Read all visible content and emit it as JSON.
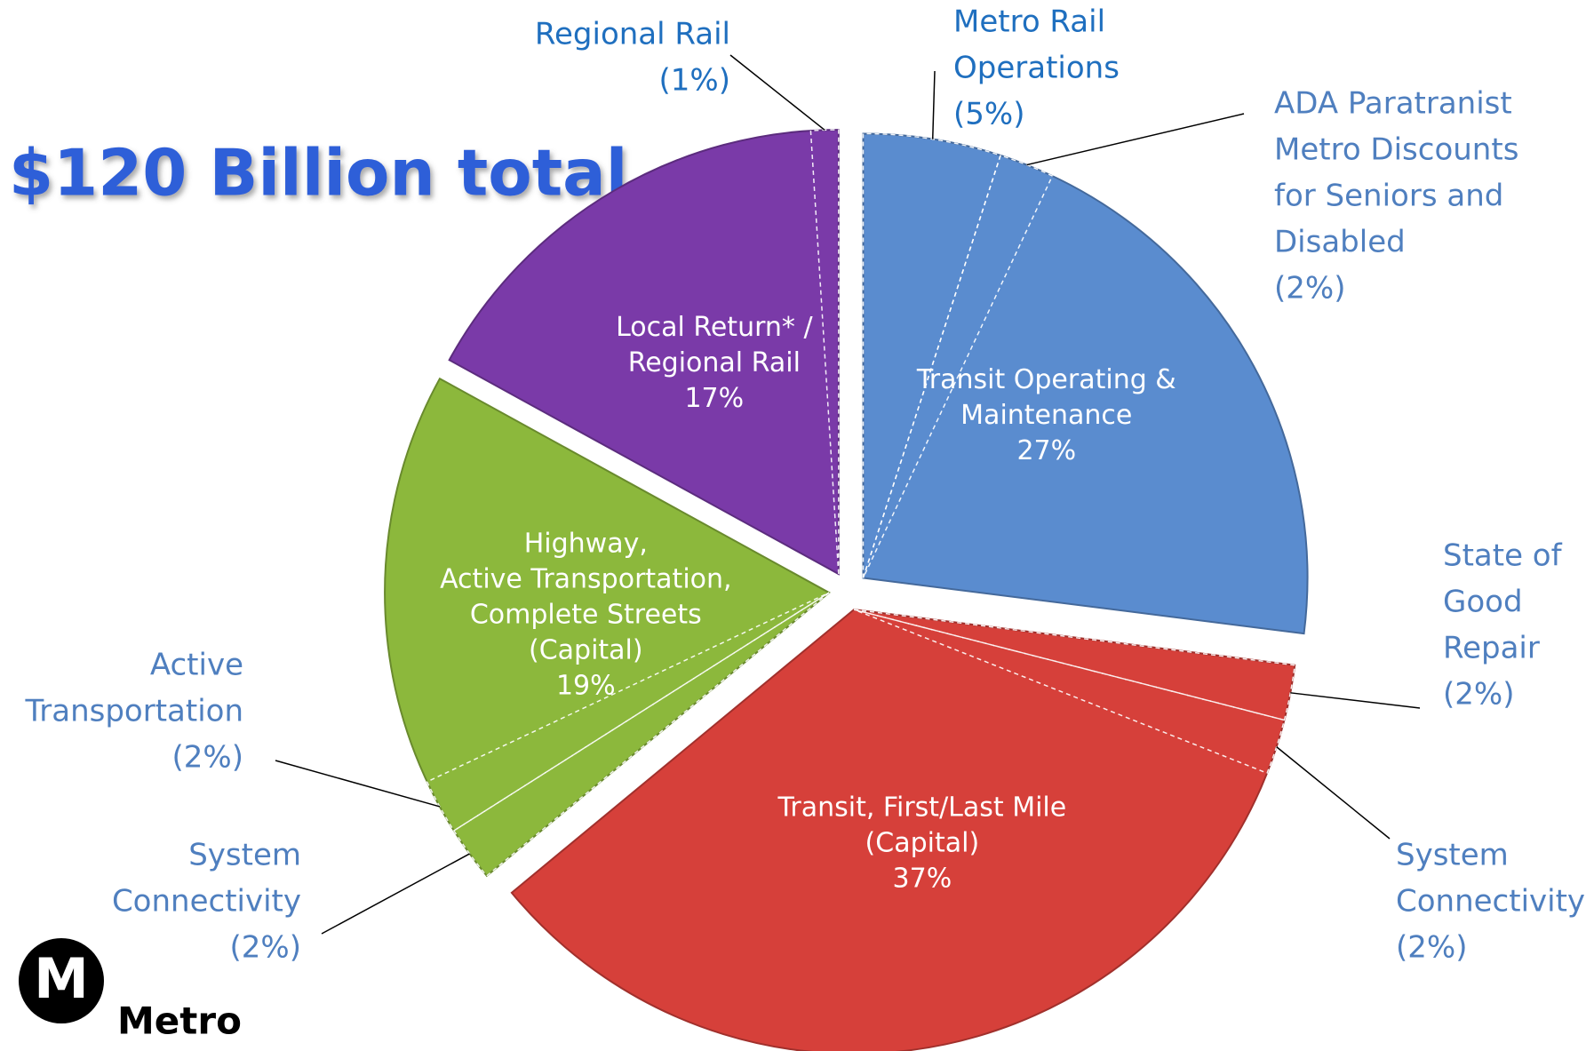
{
  "chart_data": {
    "type": "pie",
    "title": "$120 Billion total",
    "slices": [
      {
        "label": [
          "Transit Operating &",
          "Maintenance"
        ],
        "value": 27,
        "value_label": "27%",
        "color": "#5a8ccf",
        "subslices": [
          {
            "name": [
              "Metro Rail",
              "Operations"
            ],
            "value": 5,
            "value_label": "(5%)"
          },
          {
            "name": [
              "ADA Paratranist",
              "Metro Discounts",
              "for Seniors and",
              "Disabled"
            ],
            "value": 2,
            "value_label": "(2%)"
          }
        ]
      },
      {
        "label": [
          "Transit, First/Last Mile",
          "(Capital)"
        ],
        "value": 37,
        "value_label": "37%",
        "color": "#d6403a",
        "subslices": [
          {
            "name": [
              "State of",
              "Good",
              "Repair"
            ],
            "value": 2,
            "value_label": "(2%)"
          },
          {
            "name": [
              "System",
              "Connectivity"
            ],
            "value": 2,
            "value_label": "(2%)"
          }
        ]
      },
      {
        "label": [
          "Highway,",
          "Active Transportation,",
          "Complete Streets",
          "(Capital)"
        ],
        "value": 19,
        "value_label": "19%",
        "color": "#8cb83c",
        "subslices": [
          {
            "name": [
              "System",
              "Connectivity"
            ],
            "value": 2,
            "value_label": "(2%)"
          },
          {
            "name": [
              "Active",
              "Transportation"
            ],
            "value": 2,
            "value_label": "(2%)"
          }
        ]
      },
      {
        "label": [
          "Local Return* /",
          "Regional Rail"
        ],
        "value": 17,
        "value_label": "17%",
        "color": "#7a3aa8",
        "subslices": [
          {
            "name": [
              "Regional Rail"
            ],
            "value": 1,
            "value_label": "(1%)"
          }
        ]
      }
    ]
  },
  "logo": {
    "mark": "M",
    "text": "Metro"
  }
}
